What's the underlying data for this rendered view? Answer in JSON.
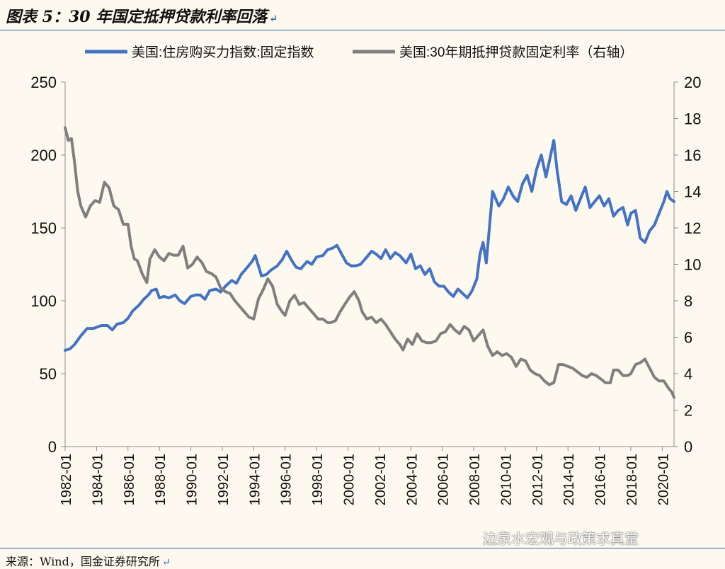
{
  "page": {
    "title": "图表 5：30 年国定抵押贷款利率回落",
    "source": "来源：Wind，国金证券研究所",
    "watermark": "边泉水宏观与政策求真堂",
    "return_mark": "↵"
  },
  "chart_data": {
    "type": "line",
    "legend_position": "top",
    "grid": false,
    "left_axis": {
      "range": [
        0,
        250
      ],
      "ticks": [
        "0",
        "50",
        "100",
        "150",
        "200",
        "250"
      ]
    },
    "right_axis": {
      "range": [
        0,
        20
      ],
      "ticks": [
        "0",
        "2",
        "4",
        "6",
        "8",
        "10",
        "12",
        "14",
        "16",
        "18",
        "20"
      ]
    },
    "x_range": [
      1982.0,
      2020.75
    ],
    "x_ticks": [
      "1982-01",
      "1984-01",
      "1986-01",
      "1988-01",
      "1990-01",
      "1992-01",
      "1994-01",
      "1996-01",
      "1998-01",
      "2000-01",
      "2002-01",
      "2004-01",
      "2006-01",
      "2008-01",
      "2010-01",
      "2012-01",
      "2014-01",
      "2016-01",
      "2018-01",
      "2020-01"
    ],
    "series": [
      {
        "name": "美国:住房购买力指数:固定指数",
        "axis": "left",
        "color": "#4472c4",
        "points": [
          [
            1982.0,
            66
          ],
          [
            1982.3,
            67
          ],
          [
            1982.6,
            70
          ],
          [
            1983.0,
            76
          ],
          [
            1983.4,
            81
          ],
          [
            1983.8,
            81
          ],
          [
            1984.3,
            83
          ],
          [
            1984.7,
            83
          ],
          [
            1985.0,
            80
          ],
          [
            1985.3,
            84
          ],
          [
            1985.7,
            85
          ],
          [
            1986.0,
            88
          ],
          [
            1986.3,
            93
          ],
          [
            1986.7,
            97
          ],
          [
            1987.0,
            101
          ],
          [
            1987.3,
            104
          ],
          [
            1987.5,
            107
          ],
          [
            1987.8,
            108
          ],
          [
            1988.0,
            102
          ],
          [
            1988.3,
            103
          ],
          [
            1988.6,
            102
          ],
          [
            1989.0,
            104
          ],
          [
            1989.3,
            100
          ],
          [
            1989.6,
            98
          ],
          [
            1990.0,
            103
          ],
          [
            1990.3,
            104
          ],
          [
            1990.6,
            104
          ],
          [
            1990.9,
            101
          ],
          [
            1991.2,
            107
          ],
          [
            1991.6,
            108
          ],
          [
            1991.9,
            106
          ],
          [
            1992.2,
            110
          ],
          [
            1992.6,
            114
          ],
          [
            1992.9,
            112
          ],
          [
            1993.2,
            118
          ],
          [
            1993.6,
            123
          ],
          [
            1993.9,
            127
          ],
          [
            1994.1,
            131
          ],
          [
            1994.3,
            124
          ],
          [
            1994.5,
            117
          ],
          [
            1994.8,
            118
          ],
          [
            1995.1,
            121
          ],
          [
            1995.5,
            124
          ],
          [
            1995.8,
            128
          ],
          [
            1996.1,
            134
          ],
          [
            1996.4,
            128
          ],
          [
            1996.7,
            123
          ],
          [
            1997.0,
            122
          ],
          [
            1997.4,
            127
          ],
          [
            1997.7,
            125
          ],
          [
            1998.0,
            130
          ],
          [
            1998.4,
            131
          ],
          [
            1998.7,
            135
          ],
          [
            1999.0,
            136
          ],
          [
            1999.3,
            138
          ],
          [
            1999.6,
            132
          ],
          [
            1999.9,
            126
          ],
          [
            2000.2,
            124
          ],
          [
            2000.5,
            124
          ],
          [
            2000.8,
            125
          ],
          [
            2001.2,
            130
          ],
          [
            2001.5,
            134
          ],
          [
            2001.8,
            132
          ],
          [
            2002.1,
            129
          ],
          [
            2002.4,
            135
          ],
          [
            2002.7,
            129
          ],
          [
            2003.0,
            133
          ],
          [
            2003.3,
            131
          ],
          [
            2003.7,
            126
          ],
          [
            2004.0,
            132
          ],
          [
            2004.3,
            122
          ],
          [
            2004.6,
            124
          ],
          [
            2004.9,
            118
          ],
          [
            2005.2,
            122
          ],
          [
            2005.5,
            113
          ],
          [
            2005.8,
            110
          ],
          [
            2006.1,
            110
          ],
          [
            2006.4,
            106
          ],
          [
            2006.7,
            103
          ],
          [
            2007.0,
            108
          ],
          [
            2007.3,
            105
          ],
          [
            2007.6,
            102
          ],
          [
            2007.9,
            107
          ],
          [
            2008.2,
            115
          ],
          [
            2008.4,
            132
          ],
          [
            2008.6,
            140
          ],
          [
            2008.8,
            126
          ],
          [
            2009.0,
            150
          ],
          [
            2009.2,
            175
          ],
          [
            2009.4,
            170
          ],
          [
            2009.6,
            165
          ],
          [
            2009.9,
            170
          ],
          [
            2010.2,
            178
          ],
          [
            2010.5,
            172
          ],
          [
            2010.8,
            168
          ],
          [
            2011.1,
            180
          ],
          [
            2011.4,
            186
          ],
          [
            2011.7,
            175
          ],
          [
            2012.0,
            190
          ],
          [
            2012.3,
            200
          ],
          [
            2012.6,
            185
          ],
          [
            2012.8,
            195
          ],
          [
            2013.1,
            210
          ],
          [
            2013.3,
            190
          ],
          [
            2013.6,
            168
          ],
          [
            2013.9,
            166
          ],
          [
            2014.2,
            172
          ],
          [
            2014.5,
            162
          ],
          [
            2014.8,
            170
          ],
          [
            2015.1,
            178
          ],
          [
            2015.4,
            164
          ],
          [
            2015.7,
            168
          ],
          [
            2016.0,
            172
          ],
          [
            2016.3,
            165
          ],
          [
            2016.6,
            170
          ],
          [
            2016.9,
            158
          ],
          [
            2017.2,
            162
          ],
          [
            2017.5,
            164
          ],
          [
            2017.8,
            152
          ],
          [
            2018.0,
            160
          ],
          [
            2018.3,
            162
          ],
          [
            2018.6,
            143
          ],
          [
            2018.9,
            140
          ],
          [
            2019.2,
            148
          ],
          [
            2019.5,
            152
          ],
          [
            2019.8,
            160
          ],
          [
            2020.1,
            168
          ],
          [
            2020.3,
            175
          ],
          [
            2020.5,
            170
          ],
          [
            2020.75,
            168
          ]
        ]
      },
      {
        "name": "美国:30年期抵押贷款固定利率（右轴）",
        "axis": "right",
        "color": "#7f7f7f",
        "points": [
          [
            1982.0,
            17.5
          ],
          [
            1982.2,
            16.8
          ],
          [
            1982.4,
            16.9
          ],
          [
            1982.6,
            15.6
          ],
          [
            1982.8,
            14.0
          ],
          [
            1983.0,
            13.2
          ],
          [
            1983.3,
            12.6
          ],
          [
            1983.6,
            13.2
          ],
          [
            1983.9,
            13.5
          ],
          [
            1984.2,
            13.4
          ],
          [
            1984.5,
            14.5
          ],
          [
            1984.8,
            14.2
          ],
          [
            1985.1,
            13.2
          ],
          [
            1985.4,
            13.0
          ],
          [
            1985.7,
            12.2
          ],
          [
            1986.0,
            12.2
          ],
          [
            1986.2,
            11.0
          ],
          [
            1986.4,
            10.3
          ],
          [
            1986.6,
            10.2
          ],
          [
            1986.9,
            9.5
          ],
          [
            1987.2,
            9.0
          ],
          [
            1987.4,
            10.3
          ],
          [
            1987.7,
            10.8
          ],
          [
            1988.0,
            10.4
          ],
          [
            1988.3,
            10.2
          ],
          [
            1988.6,
            10.6
          ],
          [
            1988.9,
            10.5
          ],
          [
            1989.2,
            10.5
          ],
          [
            1989.5,
            11.0
          ],
          [
            1989.8,
            9.8
          ],
          [
            1990.1,
            10.0
          ],
          [
            1990.4,
            10.4
          ],
          [
            1990.7,
            10.1
          ],
          [
            1991.0,
            9.6
          ],
          [
            1991.3,
            9.5
          ],
          [
            1991.6,
            9.3
          ],
          [
            1991.9,
            8.7
          ],
          [
            1992.2,
            8.5
          ],
          [
            1992.5,
            8.4
          ],
          [
            1992.8,
            8.0
          ],
          [
            1993.1,
            7.7
          ],
          [
            1993.4,
            7.4
          ],
          [
            1993.7,
            7.1
          ],
          [
            1994.0,
            7.0
          ],
          [
            1994.3,
            8.1
          ],
          [
            1994.6,
            8.6
          ],
          [
            1994.9,
            9.2
          ],
          [
            1995.2,
            8.8
          ],
          [
            1995.5,
            7.8
          ],
          [
            1995.8,
            7.4
          ],
          [
            1996.0,
            7.2
          ],
          [
            1996.3,
            8.0
          ],
          [
            1996.6,
            8.3
          ],
          [
            1996.9,
            7.8
          ],
          [
            1997.2,
            7.9
          ],
          [
            1997.5,
            7.6
          ],
          [
            1997.8,
            7.3
          ],
          [
            1998.1,
            7.0
          ],
          [
            1998.4,
            7.0
          ],
          [
            1998.7,
            6.8
          ],
          [
            1998.9,
            6.8
          ],
          [
            1999.2,
            6.9
          ],
          [
            1999.5,
            7.4
          ],
          [
            1999.8,
            7.8
          ],
          [
            2000.1,
            8.2
          ],
          [
            2000.4,
            8.5
          ],
          [
            2000.7,
            8.0
          ],
          [
            2000.9,
            7.4
          ],
          [
            2001.2,
            7.0
          ],
          [
            2001.5,
            7.1
          ],
          [
            2001.8,
            6.8
          ],
          [
            2002.1,
            7.0
          ],
          [
            2002.4,
            6.7
          ],
          [
            2002.7,
            6.3
          ],
          [
            2003.0,
            5.9
          ],
          [
            2003.3,
            5.6
          ],
          [
            2003.5,
            5.3
          ],
          [
            2003.8,
            5.9
          ],
          [
            2004.1,
            5.6
          ],
          [
            2004.4,
            6.2
          ],
          [
            2004.7,
            5.8
          ],
          [
            2005.0,
            5.7
          ],
          [
            2005.3,
            5.7
          ],
          [
            2005.6,
            5.8
          ],
          [
            2005.9,
            6.2
          ],
          [
            2006.2,
            6.3
          ],
          [
            2006.5,
            6.7
          ],
          [
            2006.8,
            6.4
          ],
          [
            2007.1,
            6.2
          ],
          [
            2007.4,
            6.6
          ],
          [
            2007.7,
            6.4
          ],
          [
            2008.0,
            5.8
          ],
          [
            2008.3,
            6.1
          ],
          [
            2008.6,
            6.4
          ],
          [
            2008.9,
            5.5
          ],
          [
            2009.2,
            5.0
          ],
          [
            2009.5,
            5.2
          ],
          [
            2009.8,
            5.0
          ],
          [
            2010.1,
            5.1
          ],
          [
            2010.4,
            4.9
          ],
          [
            2010.7,
            4.4
          ],
          [
            2011.0,
            4.8
          ],
          [
            2011.3,
            4.7
          ],
          [
            2011.6,
            4.2
          ],
          [
            2011.9,
            4.0
          ],
          [
            2012.2,
            3.9
          ],
          [
            2012.5,
            3.6
          ],
          [
            2012.8,
            3.4
          ],
          [
            2013.1,
            3.5
          ],
          [
            2013.4,
            4.5
          ],
          [
            2013.7,
            4.5
          ],
          [
            2014.0,
            4.4
          ],
          [
            2014.3,
            4.3
          ],
          [
            2014.6,
            4.1
          ],
          [
            2014.9,
            3.9
          ],
          [
            2015.2,
            3.8
          ],
          [
            2015.5,
            4.0
          ],
          [
            2015.8,
            3.9
          ],
          [
            2016.1,
            3.7
          ],
          [
            2016.4,
            3.5
          ],
          [
            2016.7,
            3.5
          ],
          [
            2016.9,
            4.2
          ],
          [
            2017.2,
            4.2
          ],
          [
            2017.5,
            3.9
          ],
          [
            2017.8,
            3.9
          ],
          [
            2018.0,
            4.0
          ],
          [
            2018.3,
            4.5
          ],
          [
            2018.6,
            4.6
          ],
          [
            2018.9,
            4.8
          ],
          [
            2019.2,
            4.3
          ],
          [
            2019.5,
            3.8
          ],
          [
            2019.8,
            3.6
          ],
          [
            2020.1,
            3.6
          ],
          [
            2020.4,
            3.2
          ],
          [
            2020.6,
            3.0
          ],
          [
            2020.75,
            2.7
          ]
        ]
      }
    ]
  }
}
